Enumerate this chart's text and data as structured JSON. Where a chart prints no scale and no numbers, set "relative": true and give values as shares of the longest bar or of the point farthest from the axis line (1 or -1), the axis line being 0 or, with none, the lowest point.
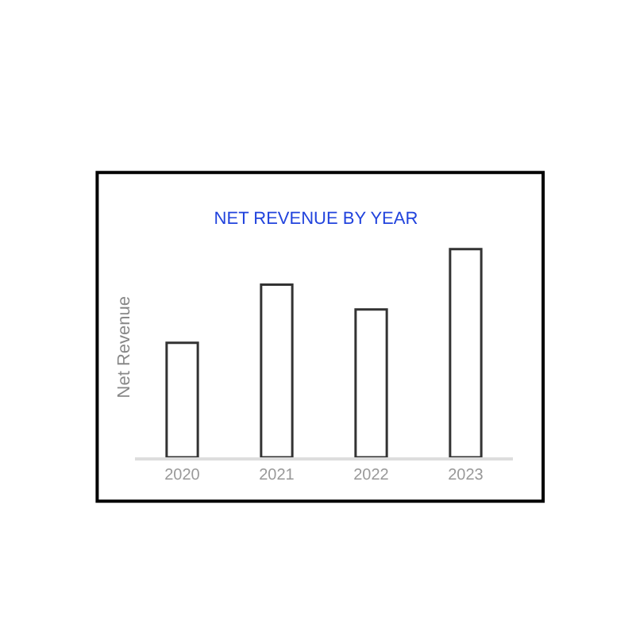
{
  "chart_data": {
    "type": "bar",
    "title": "NET REVENUE BY YEAR",
    "ylabel": "Net Revenue",
    "categories": [
      "2020",
      "2021",
      "2022",
      "2023"
    ],
    "values": [
      0.55,
      0.83,
      0.71,
      1
    ],
    "color": "#ffffff",
    "relative": true
  }
}
